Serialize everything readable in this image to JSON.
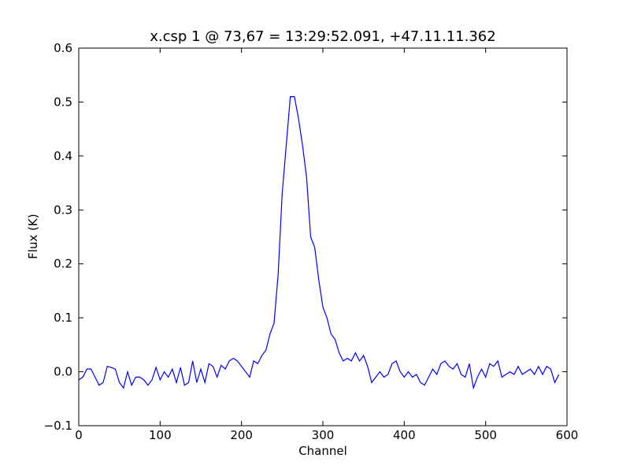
{
  "chart_data": {
    "type": "line",
    "title": "x.csp 1 @ 73,67 = 13:29:52.091, +47.11.11.362",
    "x_label": "Channel",
    "y_label": "Flux (K)",
    "xlim": [
      0,
      600
    ],
    "ylim": [
      -0.1,
      0.6
    ],
    "xticks": [
      0,
      100,
      200,
      300,
      400,
      500,
      600
    ],
    "yticks": [
      {
        "value": -0.1,
        "label": "−0.1"
      },
      {
        "value": 0,
        "label": "0.0"
      },
      0.1,
      0.2,
      0.3,
      0.4,
      0.5,
      0.6
    ],
    "grid": false,
    "series": [
      {
        "color": "#0000ff",
        "x": [
          0,
          5,
          10,
          15,
          20,
          25,
          30,
          35,
          40,
          45,
          50,
          55,
          60,
          65,
          70,
          75,
          80,
          85,
          90,
          95,
          100,
          105,
          110,
          115,
          120,
          125,
          130,
          135,
          140,
          145,
          150,
          155,
          160,
          165,
          170,
          175,
          180,
          185,
          190,
          195,
          200,
          205,
          210,
          215,
          220,
          225,
          230,
          235,
          240,
          245,
          250,
          255,
          260,
          265,
          270,
          275,
          280,
          285,
          290,
          295,
          300,
          305,
          310,
          315,
          320,
          325,
          330,
          335,
          340,
          345,
          350,
          355,
          360,
          365,
          370,
          375,
          380,
          385,
          390,
          395,
          400,
          405,
          410,
          415,
          420,
          425,
          430,
          435,
          440,
          445,
          450,
          455,
          460,
          465,
          470,
          475,
          480,
          485,
          490,
          495,
          500,
          505,
          510,
          515,
          520,
          525,
          530,
          535,
          540,
          545,
          550,
          555,
          560,
          565,
          570,
          575,
          580,
          585,
          590
        ],
        "values": [
          -0.015,
          -0.01,
          0.005,
          0.005,
          -0.01,
          -0.025,
          -0.02,
          0.01,
          0.008,
          0.005,
          -0.02,
          -0.03,
          0.0,
          -0.025,
          -0.01,
          -0.01,
          -0.015,
          -0.025,
          -0.015,
          0.008,
          -0.015,
          0.0,
          -0.01,
          0.005,
          -0.02,
          0.008,
          -0.025,
          -0.02,
          0.02,
          -0.02,
          0.005,
          -0.02,
          0.015,
          0.01,
          -0.01,
          0.012,
          0.005,
          0.02,
          0.025,
          0.02,
          0.01,
          0.0,
          -0.01,
          0.02,
          0.015,
          0.03,
          0.04,
          0.07,
          0.09,
          0.18,
          0.33,
          0.42,
          0.51,
          0.51,
          0.47,
          0.42,
          0.36,
          0.25,
          0.23,
          0.17,
          0.12,
          0.1,
          0.07,
          0.06,
          0.035,
          0.02,
          0.025,
          0.02,
          0.035,
          0.02,
          0.03,
          0.01,
          -0.02,
          -0.01,
          0.0,
          -0.01,
          -0.005,
          0.015,
          0.02,
          0.0,
          -0.01,
          0.0,
          -0.01,
          -0.005,
          -0.02,
          -0.025,
          -0.01,
          0.005,
          -0.005,
          0.015,
          0.02,
          0.01,
          0.005,
          0.015,
          -0.005,
          -0.01,
          0.015,
          -0.03,
          -0.01,
          0.005,
          -0.01,
          0.015,
          0.01,
          0.02,
          -0.01,
          -0.005,
          0.0,
          -0.005,
          0.01,
          -0.005,
          0.0,
          0.005,
          -0.005,
          0.01,
          -0.005,
          0.01,
          0.005,
          -0.02,
          -0.005
        ]
      }
    ]
  }
}
